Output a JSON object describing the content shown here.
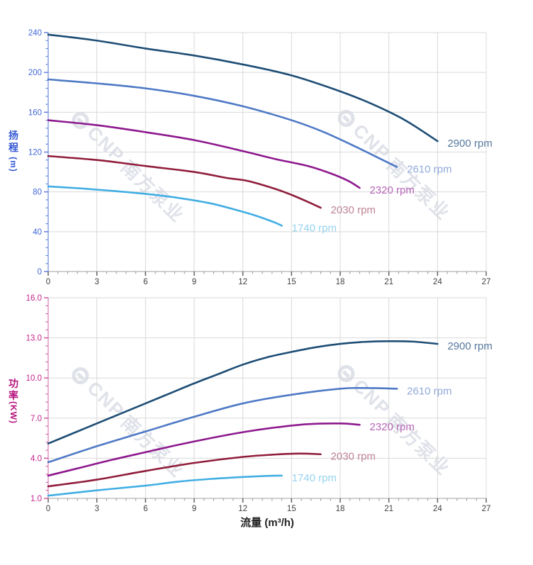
{
  "watermark": {
    "brand": "CNP",
    "company": "南方泵业"
  },
  "xaxis_title": "流量 (m³/h)",
  "colors": {
    "grid": "#d9d9d9",
    "x_axis_line": "#b3b3b3",
    "x_major_tick": "#595959",
    "x_minor_tick": "#9a9a9a",
    "x_tick_label": "#404040",
    "head_axis": "#6d89e0",
    "head_tick_label": "#4167d9",
    "head_title": "#3358d4",
    "power_axis": "#d express6aae",
    "power_tick_label": "#c3258d",
    "power_title": "#b5137d"
  },
  "chart_data": [
    {
      "type": "line",
      "name": "head-curves",
      "ylabel": "扬程 (m)",
      "ylabel_chars": [
        "扬",
        "程"
      ],
      "ylabel_unit": "(m)",
      "xlabel": "",
      "xlim": [
        0,
        27
      ],
      "ylim": [
        0,
        240
      ],
      "grid": true,
      "legend_position": "right-of-curve-end",
      "x_ticks": [
        0,
        3,
        6,
        9,
        12,
        15,
        18,
        21,
        24,
        27
      ],
      "x_tick_labels": [
        "0",
        "3",
        "6",
        "9",
        "12",
        "15",
        "18",
        "21",
        "24",
        "27"
      ],
      "x_minor_step": 0.6,
      "y_ticks": [
        0,
        40,
        80,
        120,
        160,
        200,
        240
      ],
      "y_tick_labels": [
        "0",
        "40",
        "80",
        "120",
        "160",
        "200",
        "240"
      ],
      "y_minor_step": 8,
      "axis_color": "#6d89e0",
      "tick_color": "#5b79de",
      "tick_label_color": "#4167d9",
      "series": [
        {
          "name": "2900 rpm",
          "color": "#1d4d75",
          "label_color": "#56799e",
          "points": [
            [
              0,
              238
            ],
            [
              3,
              232
            ],
            [
              6,
              224
            ],
            [
              9,
              217
            ],
            [
              12,
              208
            ],
            [
              15,
              197
            ],
            [
              18,
              181
            ],
            [
              20,
              168
            ],
            [
              22,
              152
            ],
            [
              24,
              131
            ]
          ]
        },
        {
          "name": "2610 rpm",
          "color": "#4e79c5",
          "label_color": "#90a9db",
          "points": [
            [
              0,
              193
            ],
            [
              3,
              189
            ],
            [
              6,
              184
            ],
            [
              9,
              176.5
            ],
            [
              12,
              166
            ],
            [
              15,
              152
            ],
            [
              17,
              140
            ],
            [
              19,
              125
            ],
            [
              20.5,
              113
            ],
            [
              21.5,
              105
            ]
          ]
        },
        {
          "name": "2320 rpm",
          "color": "#8d188d",
          "label_color": "#b765b7",
          "points": [
            [
              0,
              152
            ],
            [
              3,
              147
            ],
            [
              6,
              140
            ],
            [
              9,
              132
            ],
            [
              12,
              121
            ],
            [
              14,
              113
            ],
            [
              16,
              106
            ],
            [
              17.5,
              98
            ],
            [
              18.5,
              91
            ],
            [
              19.2,
              84
            ]
          ]
        },
        {
          "name": "2030 rpm",
          "color": "#901d3b",
          "label_color": "#bd8494",
          "points": [
            [
              0,
              116
            ],
            [
              3,
              112
            ],
            [
              6,
              106
            ],
            [
              9,
              100
            ],
            [
              11,
              94
            ],
            [
              12.3,
              91
            ],
            [
              14,
              83
            ],
            [
              15,
              77
            ],
            [
              16,
              70
            ],
            [
              16.8,
              64
            ]
          ]
        },
        {
          "name": "1740 rpm",
          "color": "#41aee3",
          "label_color": "#97d3f0",
          "points": [
            [
              0,
              85.5
            ],
            [
              2,
              83.5
            ],
            [
              4,
              81
            ],
            [
              6,
              78
            ],
            [
              8,
              74
            ],
            [
              10,
              68.5
            ],
            [
              12,
              60
            ],
            [
              13,
              55
            ],
            [
              14,
              49
            ],
            [
              14.4,
              46
            ]
          ]
        }
      ]
    },
    {
      "type": "line",
      "name": "power-curves",
      "ylabel": "功率 (KW)",
      "ylabel_chars": [
        "功",
        "率"
      ],
      "ylabel_unit": "(KW)",
      "xlabel": "流量 (m³/h)",
      "xlim": [
        0,
        27
      ],
      "ylim": [
        1.0,
        16.0
      ],
      "grid": true,
      "legend_position": "right-of-curve-end",
      "x_ticks": [
        0,
        3,
        6,
        9,
        12,
        15,
        18,
        21,
        24,
        27
      ],
      "x_tick_labels": [
        "0",
        "3",
        "6",
        "9",
        "12",
        "15",
        "18",
        "21",
        "24",
        "27"
      ],
      "x_minor_step": 0.6,
      "y_ticks": [
        1.0,
        4.0,
        7.0,
        10.0,
        13.0,
        16.0
      ],
      "y_tick_labels": [
        "1.0",
        "4.0",
        "7.0",
        "10.0",
        "13.0",
        "16.0"
      ],
      "y_minor_step": 0.6,
      "axis_color": "#dd7ab8",
      "tick_color": "#cc4f9e",
      "tick_label_color": "#c3258d",
      "series": [
        {
          "name": "2900 rpm",
          "color": "#1d4d75",
          "label_color": "#56799e",
          "points": [
            [
              0,
              5.1
            ],
            [
              1.5,
              5.85
            ],
            [
              3,
              6.6
            ],
            [
              4.5,
              7.35
            ],
            [
              6,
              8.1
            ],
            [
              7.5,
              8.85
            ],
            [
              9,
              9.6
            ],
            [
              10.5,
              10.3
            ],
            [
              12,
              11.0
            ],
            [
              13.5,
              11.55
            ],
            [
              15,
              11.95
            ],
            [
              16.5,
              12.3
            ],
            [
              18,
              12.55
            ],
            [
              19.5,
              12.7
            ],
            [
              21,
              12.75
            ],
            [
              22.5,
              12.72
            ],
            [
              24,
              12.55
            ]
          ]
        },
        {
          "name": "2610 rpm",
          "color": "#4e79c5",
          "label_color": "#90a9db",
          "points": [
            [
              0,
              3.7
            ],
            [
              3,
              4.9
            ],
            [
              6,
              6.0
            ],
            [
              9,
              7.1
            ],
            [
              12,
              8.1
            ],
            [
              15,
              8.75
            ],
            [
              18,
              9.2
            ],
            [
              19.5,
              9.25
            ],
            [
              21.5,
              9.2
            ]
          ]
        },
        {
          "name": "2320 rpm",
          "color": "#8d188d",
          "label_color": "#b765b7",
          "points": [
            [
              0,
              2.7
            ],
            [
              2,
              3.3
            ],
            [
              4,
              3.9
            ],
            [
              6,
              4.45
            ],
            [
              8,
              5.0
            ],
            [
              10,
              5.5
            ],
            [
              12,
              5.95
            ],
            [
              14,
              6.3
            ],
            [
              16,
              6.55
            ],
            [
              18,
              6.6
            ],
            [
              19.2,
              6.5
            ]
          ]
        },
        {
          "name": "2030 rpm",
          "color": "#901d3b",
          "label_color": "#bd8494",
          "points": [
            [
              0,
              1.9
            ],
            [
              3,
              2.4
            ],
            [
              6,
              3.05
            ],
            [
              9,
              3.65
            ],
            [
              12,
              4.1
            ],
            [
              14,
              4.28
            ],
            [
              15.5,
              4.35
            ],
            [
              16.8,
              4.3
            ]
          ]
        },
        {
          "name": "1740 rpm",
          "color": "#41aee3",
          "label_color": "#97d3f0",
          "points": [
            [
              0,
              1.2
            ],
            [
              3,
              1.6
            ],
            [
              6,
              1.95
            ],
            [
              8,
              2.25
            ],
            [
              10,
              2.45
            ],
            [
              12,
              2.6
            ],
            [
              13.5,
              2.68
            ],
            [
              14.4,
              2.7
            ]
          ]
        }
      ]
    }
  ]
}
